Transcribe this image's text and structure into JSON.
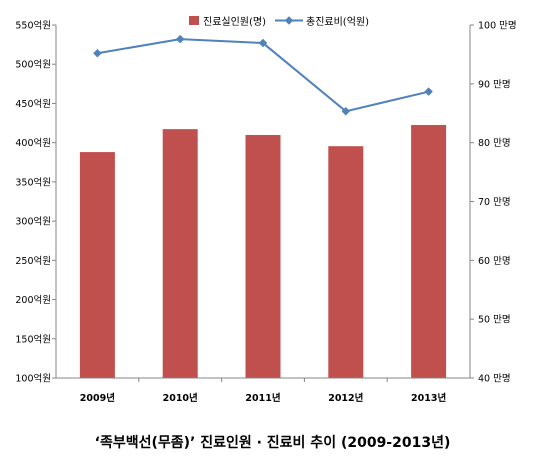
{
  "caption": "‘족부백선(무좀)’ 진료인원 · 진료비 추이 (2009-2013년)",
  "chart_data": {
    "type": "bar",
    "categories": [
      "2009년",
      "2010년",
      "2011년",
      "2012년",
      "2013년"
    ],
    "series": [
      {
        "name": "진료실인원(명)",
        "type": "bar",
        "axis": "right",
        "unit": "만명",
        "color": "#c0504d",
        "values": [
          78.4,
          82.3,
          81.3,
          79.4,
          83.0
        ]
      },
      {
        "name": "총진료비(억원)",
        "type": "line",
        "axis": "left",
        "unit": "억원",
        "color": "#4f81bd",
        "values": [
          514,
          532,
          527,
          440,
          465
        ]
      }
    ],
    "y_left": {
      "ticks": [
        "100억원",
        "150억원",
        "200억원",
        "250억원",
        "300억원",
        "350억원",
        "400억원",
        "450억원",
        "500억원",
        "550억원"
      ],
      "range": [
        100,
        550
      ]
    },
    "y_right": {
      "ticks": [
        "40 만명",
        "50 만명",
        "60 만명",
        "70 만명",
        "80 만명",
        "90 만명",
        "100 만명"
      ],
      "range": [
        40,
        100
      ]
    },
    "legend_position": "top-center",
    "grid": false
  }
}
